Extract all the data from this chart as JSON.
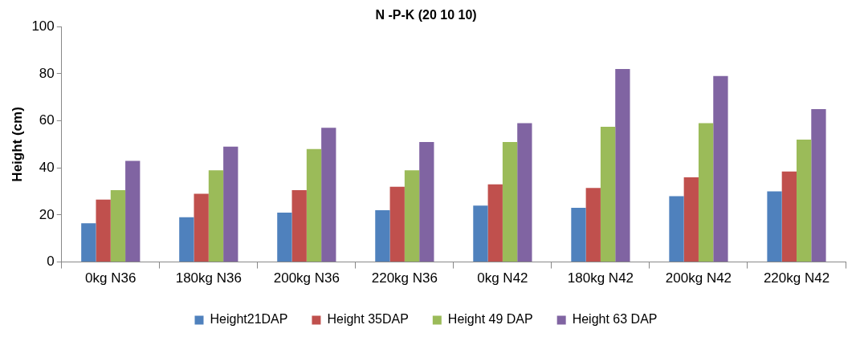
{
  "chart_data": {
    "type": "bar",
    "title": "N -P-K (20 10 10)",
    "ylabel": "Height (cm)",
    "categories": [
      "0kg N36",
      "180kg N36",
      "200kg N36",
      "220kg N36",
      "0kg N42",
      "180kg N42",
      "200kg N42",
      "220kg N42"
    ],
    "series": [
      {
        "name": "Height21DAP",
        "color": "#4f81bd",
        "values": [
          16.5,
          19,
          21,
          22,
          24,
          23,
          28,
          30
        ]
      },
      {
        "name": "Height 35DAP",
        "color": "#c0504d",
        "values": [
          26.5,
          29,
          30.5,
          32,
          33,
          31.5,
          36,
          38.5
        ]
      },
      {
        "name": "Height 49 DAP",
        "color": "#9bbb59",
        "values": [
          30.5,
          39,
          48,
          39,
          51,
          57.5,
          59,
          52
        ]
      },
      {
        "name": "Height 63 DAP",
        "color": "#8064a2",
        "values": [
          43,
          49,
          57,
          51,
          59,
          82,
          79,
          65
        ]
      }
    ],
    "ylim": [
      0,
      100
    ],
    "yticks": [
      0,
      20,
      40,
      60,
      80,
      100
    ],
    "grid": false,
    "legend": "bottom"
  }
}
